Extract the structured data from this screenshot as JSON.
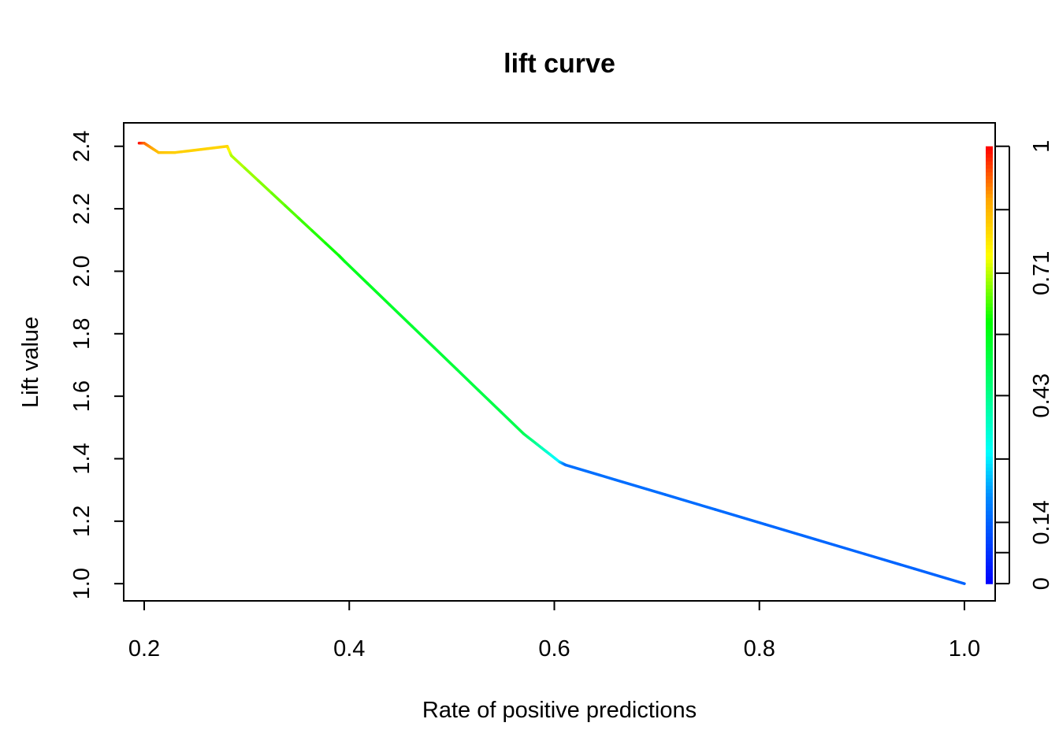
{
  "chart_data": {
    "type": "line",
    "title": "lift curve",
    "xlabel": "Rate of positive predictions",
    "ylabel": "Lift value",
    "xlim": [
      0.18,
      1.03
    ],
    "ylim": [
      0.945,
      2.475
    ],
    "x_ticks": [
      0.2,
      0.4,
      0.6,
      0.8,
      1.0
    ],
    "x_tick_labels": [
      "0.2",
      "0.4",
      "0.6",
      "0.8",
      "1.0"
    ],
    "y_ticks": [
      1.0,
      1.2,
      1.4,
      1.6,
      1.8,
      2.0,
      2.2,
      2.4
    ],
    "y_tick_labels": [
      "1.0",
      "1.2",
      "1.4",
      "1.6",
      "1.8",
      "2.0",
      "2.2",
      "2.4"
    ],
    "colorkey": {
      "ticks": [
        0,
        0.071,
        0.14,
        0.285,
        0.43,
        0.57,
        0.71,
        0.855,
        1
      ],
      "labels": [
        "0",
        "0.14",
        "0.43",
        "0.71",
        "1"
      ],
      "label_values": [
        0,
        0.14,
        0.43,
        0.71,
        1
      ]
    },
    "series": [
      {
        "points": [
          {
            "x": 0.195,
            "y": 2.41,
            "c": 1.0
          },
          {
            "x": 0.2,
            "y": 2.41,
            "c": 0.93
          },
          {
            "x": 0.214,
            "y": 2.38,
            "c": 0.84
          },
          {
            "x": 0.23,
            "y": 2.38,
            "c": 0.82
          },
          {
            "x": 0.281,
            "y": 2.4,
            "c": 0.81
          },
          {
            "x": 0.285,
            "y": 2.37,
            "c": 0.71
          },
          {
            "x": 0.39,
            "y": 2.05,
            "c": 0.6
          },
          {
            "x": 0.396,
            "y": 2.03,
            "c": 0.57
          },
          {
            "x": 0.57,
            "y": 1.48,
            "c": 0.5
          },
          {
            "x": 0.605,
            "y": 1.39,
            "c": 0.28
          },
          {
            "x": 0.611,
            "y": 1.38,
            "c": 0.16
          },
          {
            "x": 1.0,
            "y": 1.0,
            "c": 0.14
          }
        ]
      }
    ]
  }
}
